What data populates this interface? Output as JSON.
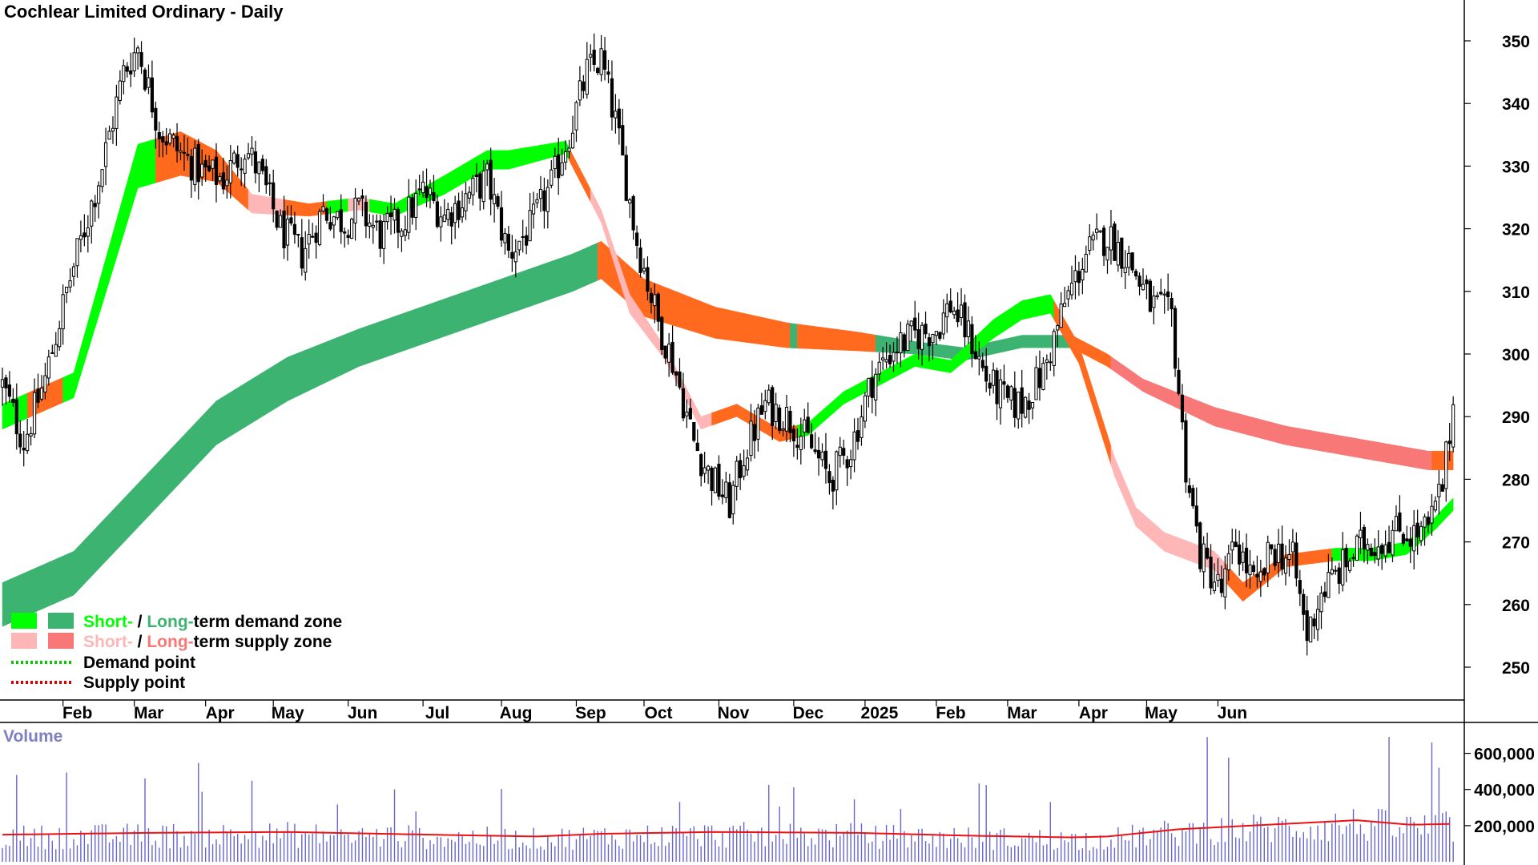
{
  "chart_data": {
    "type": "candlestick",
    "title": "Cochlear Limited Ordinary - Daily",
    "x_tick_labels": [
      "Feb",
      "Mar",
      "Apr",
      "May",
      "Jun",
      "Jul",
      "Aug",
      "Sep",
      "Oct",
      "Nov",
      "Dec",
      "2025",
      "Feb",
      "Mar",
      "Apr",
      "May",
      "Jun"
    ],
    "y_tick_labels": [
      "350",
      "340",
      "330",
      "320",
      "310",
      "300",
      "290",
      "280",
      "270",
      "260",
      "250"
    ],
    "y_ticks": [
      350,
      340,
      330,
      320,
      310,
      300,
      290,
      280,
      270,
      260,
      250
    ],
    "ylim": [
      243.5,
      356.5
    ],
    "price_path": [
      [
        0,
        295
      ],
      [
        6,
        286
      ],
      [
        12,
        296
      ],
      [
        18,
        310
      ],
      [
        22,
        318
      ],
      [
        28,
        330
      ],
      [
        34,
        345
      ],
      [
        38,
        349
      ],
      [
        44,
        336
      ],
      [
        50,
        332
      ],
      [
        56,
        329
      ],
      [
        62,
        328
      ],
      [
        68,
        333
      ],
      [
        72,
        329
      ],
      [
        78,
        320
      ],
      [
        84,
        316
      ],
      [
        90,
        323
      ],
      [
        96,
        321
      ],
      [
        100,
        323
      ],
      [
        106,
        319
      ],
      [
        112,
        321
      ],
      [
        118,
        326
      ],
      [
        124,
        322
      ],
      [
        130,
        325
      ],
      [
        136,
        328
      ],
      [
        142,
        316
      ],
      [
        148,
        320
      ],
      [
        154,
        327
      ],
      [
        160,
        337
      ],
      [
        164,
        345
      ],
      [
        168,
        347
      ],
      [
        172,
        337
      ],
      [
        178,
        318
      ],
      [
        184,
        305
      ],
      [
        188,
        299
      ],
      [
        194,
        286
      ],
      [
        198,
        281
      ],
      [
        204,
        276
      ],
      [
        208,
        284
      ],
      [
        214,
        292
      ],
      [
        220,
        290
      ],
      [
        226,
        286
      ],
      [
        232,
        280
      ],
      [
        238,
        285
      ],
      [
        244,
        296
      ],
      [
        250,
        301
      ],
      [
        256,
        303
      ],
      [
        262,
        304
      ],
      [
        266,
        308
      ],
      [
        272,
        302
      ],
      [
        276,
        296
      ],
      [
        282,
        292
      ],
      [
        286,
        292
      ],
      [
        292,
        297
      ],
      [
        298,
        308
      ],
      [
        304,
        316
      ],
      [
        310,
        319
      ],
      [
        316,
        315
      ],
      [
        322,
        308
      ],
      [
        328,
        306
      ],
      [
        332,
        282
      ],
      [
        336,
        268
      ],
      [
        342,
        262
      ],
      [
        346,
        270
      ],
      [
        352,
        262
      ],
      [
        356,
        269
      ],
      [
        362,
        267
      ],
      [
        366,
        255
      ],
      [
        370,
        262
      ],
      [
        376,
        266
      ],
      [
        382,
        270
      ],
      [
        386,
        270
      ],
      [
        392,
        272
      ],
      [
        396,
        271
      ],
      [
        400,
        272
      ],
      [
        404,
        279
      ],
      [
        407,
        292
      ]
    ],
    "short_term_zone": {
      "mid": [
        [
          0,
          290
        ],
        [
          20,
          295
        ],
        [
          38,
          330
        ],
        [
          50,
          332
        ],
        [
          60,
          330
        ],
        [
          70,
          324
        ],
        [
          86,
          323
        ],
        [
          100,
          324
        ],
        [
          110,
          323
        ],
        [
          124,
          327
        ],
        [
          136,
          331
        ],
        [
          142,
          331
        ],
        [
          158,
          333
        ],
        [
          168,
          322
        ],
        [
          176,
          308
        ],
        [
          186,
          300
        ],
        [
          196,
          289
        ],
        [
          206,
          291
        ],
        [
          218,
          287
        ],
        [
          226,
          288
        ],
        [
          236,
          293
        ],
        [
          246,
          296
        ],
        [
          256,
          299
        ],
        [
          266,
          298
        ],
        [
          278,
          304
        ],
        [
          286,
          307
        ],
        [
          294,
          308
        ],
        [
          302,
          300
        ],
        [
          312,
          282
        ],
        [
          318,
          274
        ],
        [
          326,
          270
        ],
        [
          340,
          267
        ],
        [
          348,
          262
        ],
        [
          360,
          267
        ],
        [
          374,
          268
        ],
        [
          384,
          268
        ],
        [
          394,
          269
        ],
        [
          402,
          273
        ],
        [
          407,
          276
        ]
      ],
      "width": [
        4,
        4,
        7,
        7,
        5,
        3,
        2,
        2,
        2,
        3,
        3,
        3,
        2,
        2,
        3,
        2,
        2,
        2,
        2,
        2,
        2,
        2,
        2,
        2,
        3,
        3,
        3,
        3,
        3,
        3,
        3,
        3,
        3,
        2,
        2,
        2,
        2,
        2,
        2
      ]
    },
    "long_term_zone": {
      "mid": [
        [
          0,
          260
        ],
        [
          20,
          265
        ],
        [
          40,
          277
        ],
        [
          60,
          289
        ],
        [
          80,
          296
        ],
        [
          100,
          301
        ],
        [
          120,
          305
        ],
        [
          140,
          309
        ],
        [
          160,
          313
        ],
        [
          168,
          315
        ],
        [
          180,
          309
        ],
        [
          200,
          305
        ],
        [
          220,
          303
        ],
        [
          240,
          302
        ],
        [
          256,
          301
        ],
        [
          270,
          300
        ],
        [
          286,
          302
        ],
        [
          300,
          302
        ],
        [
          310,
          299
        ],
        [
          320,
          295
        ],
        [
          340,
          290
        ],
        [
          360,
          287
        ],
        [
          380,
          285
        ],
        [
          400,
          283
        ],
        [
          407,
          283
        ]
      ],
      "width": [
        7,
        7,
        7,
        7,
        7,
        6,
        6,
        6,
        6,
        6,
        6,
        5,
        4,
        3,
        2,
        2,
        2,
        2,
        2,
        2,
        3,
        3,
        3,
        3,
        3
      ]
    },
    "volume": {
      "title": "Volume",
      "y_tick_labels": [
        "600,000",
        "400,000",
        "200,000"
      ],
      "y_ticks": [
        600000,
        400000,
        200000
      ],
      "ylim": [
        0,
        700000
      ],
      "average_path": [
        [
          0,
          150000
        ],
        [
          40,
          160000
        ],
        [
          80,
          165000
        ],
        [
          120,
          150000
        ],
        [
          150,
          140000
        ],
        [
          168,
          155000
        ],
        [
          200,
          165000
        ],
        [
          240,
          160000
        ],
        [
          270,
          145000
        ],
        [
          300,
          135000
        ],
        [
          310,
          140000
        ],
        [
          330,
          180000
        ],
        [
          350,
          200000
        ],
        [
          370,
          220000
        ],
        [
          380,
          230000
        ],
        [
          395,
          205000
        ],
        [
          407,
          210000
        ]
      ]
    },
    "legend": [
      {
        "prefix": "Short-",
        "middle": " / ",
        "emphasis": "Long-",
        "suffix": "term demand zone",
        "short_color": "#00ff00",
        "long_color": "#3cb371"
      },
      {
        "prefix": "Short-",
        "middle": " / ",
        "emphasis": "Long-",
        "suffix": "term supply zone",
        "short_color": "#ffb6b6",
        "long_color": "#f87878"
      },
      {
        "label": "Demand point",
        "color": "#00cc00"
      },
      {
        "label": "Supply point",
        "color": "#dd0000"
      }
    ],
    "colors": {
      "short_demand": "#00ff00",
      "long_demand": "#3cb371",
      "short_supply": "#ffb6b6",
      "long_supply": "#f87878",
      "transition": "#ff6a1f",
      "candle": "#000000",
      "volume_bar": "#6666cc",
      "volume_avg": "#ee1111"
    }
  }
}
